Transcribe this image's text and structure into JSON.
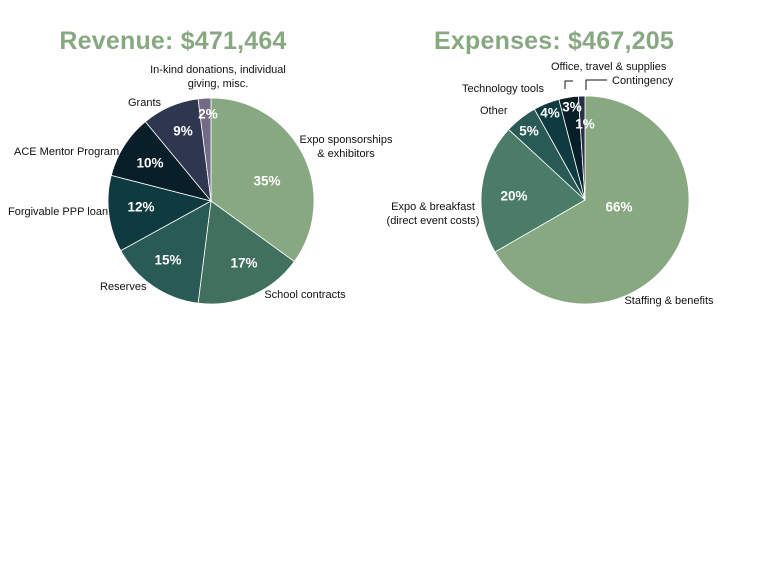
{
  "colors": {
    "title": "#88a882",
    "s1": "#88a882",
    "s2": "#41705e",
    "s3": "#2a5a55",
    "s4": "#0f3a40",
    "s5": "#081e28",
    "s6": "#2e3650",
    "s7": "#736a85",
    "e1": "#88a882",
    "e2": "#4a7c68",
    "e3": "#2a5a55",
    "e4": "#0f3a40",
    "e5": "#081e28",
    "e6": "#2a3045"
  },
  "chart_data": [
    {
      "type": "pie",
      "title": "Revenue: $471,464",
      "slices": [
        {
          "label_lines": [
            "Expo sponsorships",
            "& exhibitors"
          ],
          "value": 35,
          "pct_label": "35%",
          "color_key": "s1"
        },
        {
          "label_lines": [
            "School contracts"
          ],
          "value": 17,
          "pct_label": "17%",
          "color_key": "s2"
        },
        {
          "label_lines": [
            "Reserves"
          ],
          "value": 15,
          "pct_label": "15%",
          "color_key": "s3"
        },
        {
          "label_lines": [
            "Forgivable PPP loan"
          ],
          "value": 12,
          "pct_label": "12%",
          "color_key": "s4"
        },
        {
          "label_lines": [
            "ACE Mentor Program"
          ],
          "value": 10,
          "pct_label": "10%",
          "color_key": "s5"
        },
        {
          "label_lines": [
            "Grants"
          ],
          "value": 9,
          "pct_label": "9%",
          "color_key": "s6"
        },
        {
          "label_lines": [
            "In-kind donations, individual",
            "giving, misc."
          ],
          "value": 2,
          "pct_label": "2%",
          "color_key": "s7"
        }
      ]
    },
    {
      "type": "pie",
      "title": "Expenses: $467,205",
      "slices": [
        {
          "label_lines": [
            "Staffing & benefits"
          ],
          "value": 66,
          "pct_label": "66%",
          "color_key": "e1"
        },
        {
          "label_lines": [
            "Expo & breakfast",
            "(direct event costs)"
          ],
          "value": 20,
          "pct_label": "20%",
          "color_key": "e2"
        },
        {
          "label_lines": [
            "Other"
          ],
          "value": 5,
          "pct_label": "5%",
          "color_key": "e3"
        },
        {
          "label_lines": [
            "Technology tools"
          ],
          "value": 4,
          "pct_label": "4%",
          "color_key": "e4"
        },
        {
          "label_lines": [
            "Office, travel & supplies"
          ],
          "value": 3,
          "pct_label": "3%",
          "color_key": "e5"
        },
        {
          "label_lines": [
            "Contingency"
          ],
          "value": 1,
          "pct_label": "1%",
          "color_key": "e6"
        }
      ]
    }
  ]
}
